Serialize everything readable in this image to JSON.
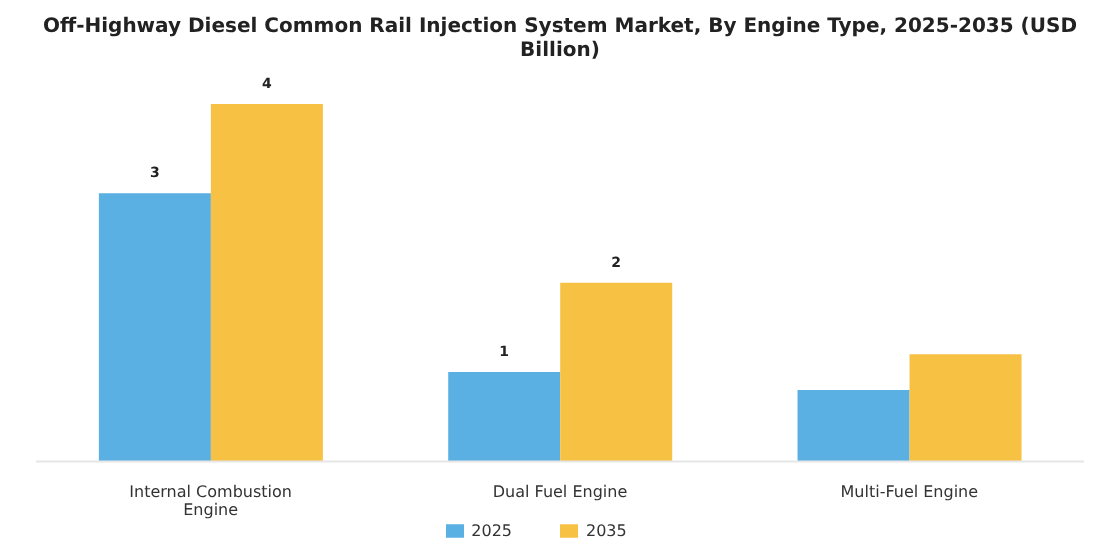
{
  "chart_data": {
    "type": "bar",
    "title": "Off-Highway Diesel Common Rail Injection System Market, By Engine Type, 2025-2035 (USD Billion)",
    "categories": [
      "Internal Combustion Engine",
      "Dual Fuel Engine",
      "Multi-Fuel Engine"
    ],
    "series": [
      {
        "name": "2025",
        "color": "#5aafe3",
        "values": [
          3,
          1,
          0.8
        ],
        "value_labels": [
          "3",
          "1",
          null
        ]
      },
      {
        "name": "2035",
        "color": "#f7c143",
        "values": [
          4,
          2,
          1.2
        ],
        "value_labels": [
          "4",
          "2",
          null
        ]
      }
    ],
    "legend": "bottom",
    "grid": false
  }
}
